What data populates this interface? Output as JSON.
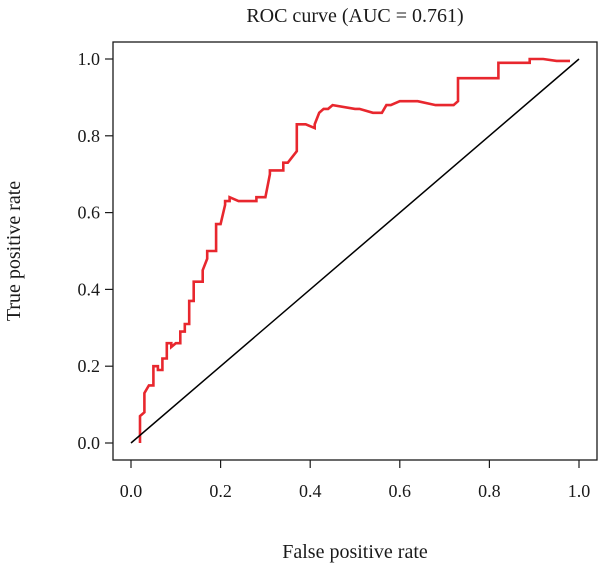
{
  "chart_data": {
    "type": "line",
    "title": "ROC curve (AUC = 0.761)",
    "xlabel": "False positive rate",
    "ylabel": "True positive rate",
    "xlim": [
      0,
      1
    ],
    "ylim": [
      0,
      1
    ],
    "x_ticks": [
      "0.0",
      "0.2",
      "0.4",
      "0.6",
      "0.8",
      "1.0"
    ],
    "y_ticks": [
      "0.0",
      "0.2",
      "0.4",
      "0.6",
      "0.8",
      "1.0"
    ],
    "grid": false,
    "legend": "none",
    "colors": {
      "roc": "#e8272e",
      "diagonal": "#000000",
      "axis": "#1a1a1a"
    },
    "series": [
      {
        "style": "roc",
        "x": [
          0.02,
          0.02,
          0.02,
          0.03,
          0.03,
          0.03,
          0.04,
          0.05,
          0.05,
          0.06,
          0.06,
          0.07,
          0.07,
          0.08,
          0.08,
          0.09,
          0.09,
          0.1,
          0.11,
          0.11,
          0.12,
          0.12,
          0.13,
          0.13,
          0.14,
          0.14,
          0.16,
          0.16,
          0.17,
          0.17,
          0.18,
          0.19,
          0.19,
          0.2,
          0.21,
          0.21,
          0.22,
          0.22,
          0.24,
          0.27,
          0.28,
          0.28,
          0.3,
          0.31,
          0.31,
          0.34,
          0.34,
          0.35,
          0.37,
          0.37,
          0.39,
          0.41,
          0.41,
          0.42,
          0.43,
          0.44,
          0.45,
          0.5,
          0.51,
          0.54,
          0.56,
          0.57,
          0.58,
          0.6,
          0.64,
          0.68,
          0.72,
          0.73,
          0.73,
          0.77,
          0.78,
          0.8,
          0.82,
          0.82,
          0.86,
          0.89,
          0.89,
          0.92,
          0.95,
          0.98
        ],
        "y": [
          0,
          0.03,
          0.07,
          0.08,
          0.13,
          0.13,
          0.15,
          0.15,
          0.2,
          0.2,
          0.19,
          0.19,
          0.22,
          0.22,
          0.26,
          0.26,
          0.25,
          0.26,
          0.26,
          0.29,
          0.29,
          0.31,
          0.31,
          0.37,
          0.37,
          0.42,
          0.42,
          0.45,
          0.48,
          0.5,
          0.5,
          0.5,
          0.57,
          0.57,
          0.62,
          0.63,
          0.63,
          0.64,
          0.63,
          0.63,
          0.63,
          0.64,
          0.64,
          0.7,
          0.71,
          0.71,
          0.73,
          0.73,
          0.76,
          0.83,
          0.83,
          0.82,
          0.83,
          0.86,
          0.87,
          0.87,
          0.88,
          0.87,
          0.87,
          0.86,
          0.86,
          0.88,
          0.88,
          0.89,
          0.89,
          0.88,
          0.88,
          0.89,
          0.95,
          0.95,
          0.95,
          0.95,
          0.95,
          0.99,
          0.99,
          0.99,
          1.0,
          1.0,
          0.995,
          0.995
        ]
      },
      {
        "style": "diagonal",
        "x": [
          0,
          1
        ],
        "y": [
          0,
          1
        ]
      }
    ]
  }
}
